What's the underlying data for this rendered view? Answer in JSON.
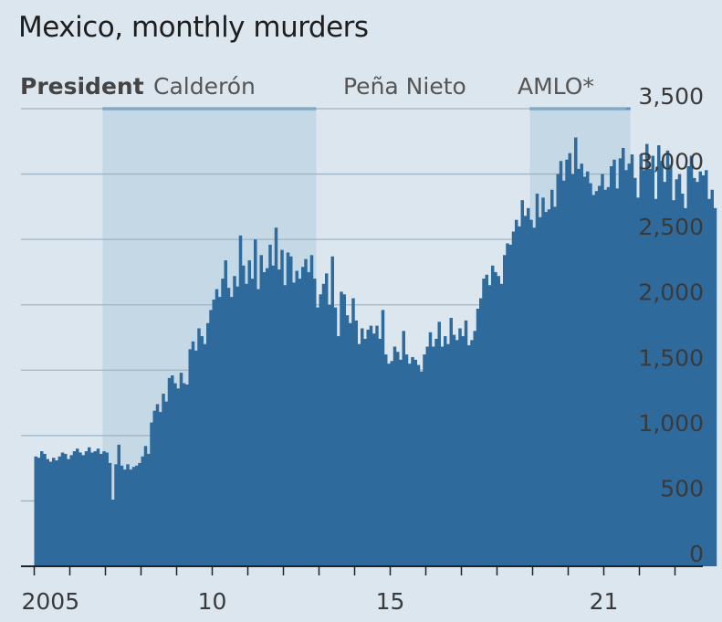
{
  "chart_data": {
    "type": "bar",
    "title": "Mexico, monthly murders",
    "xlabel": "",
    "ylabel": "",
    "ylim": [
      0,
      3500
    ],
    "yticks": [
      0,
      500,
      1000,
      1500,
      2000,
      2500,
      3000,
      3500
    ],
    "ytick_labels": [
      "0",
      "500",
      "1,000",
      "1,500",
      "2,000",
      "2,500",
      "3,000",
      "3,500"
    ],
    "y_axis_side": "right",
    "xticks": [
      2005,
      2010,
      2015,
      2021
    ],
    "xtick_labels": [
      "2005",
      "10",
      "15",
      "21"
    ],
    "x_range": [
      2005.0,
      2023.3
    ],
    "grid": true,
    "presidents_heading": "President",
    "presidents": [
      {
        "name": "Calderón",
        "start": 2006.92,
        "end": 2012.92,
        "shaded": true
      },
      {
        "name": "Peña Nieto",
        "start": 2012.92,
        "end": 2018.92,
        "shaded": false
      },
      {
        "name": "AMLO*",
        "start": 2018.92,
        "end": 2021.75,
        "shaded": true
      }
    ],
    "series": [
      {
        "start_year": 2005,
        "start_month": 1,
        "color": "#2f6a9c",
        "values": [
          840,
          830,
          880,
          860,
          820,
          800,
          830,
          810,
          840,
          870,
          860,
          820,
          850,
          880,
          900,
          870,
          850,
          880,
          910,
          870,
          880,
          900,
          860,
          880,
          870,
          790,
          510,
          780,
          930,
          770,
          740,
          780,
          740,
          760,
          770,
          790,
          840,
          920,
          860,
          1100,
          1190,
          1240,
          1180,
          1320,
          1260,
          1440,
          1460,
          1400,
          1360,
          1480,
          1400,
          1390,
          1660,
          1720,
          1650,
          1820,
          1760,
          1700,
          1860,
          1960,
          2040,
          2120,
          2060,
          2200,
          2340,
          2130,
          2060,
          2220,
          2140,
          2530,
          2300,
          2160,
          2340,
          2200,
          2500,
          2120,
          2380,
          2250,
          2280,
          2460,
          2300,
          2590,
          2270,
          2420,
          2150,
          2400,
          2370,
          2170,
          2260,
          2200,
          2290,
          2350,
          2250,
          2380,
          2200,
          1980,
          2080,
          2160,
          2240,
          2000,
          2370,
          1980,
          1760,
          2100,
          2080,
          1920,
          1860,
          2050,
          1880,
          1700,
          1820,
          1740,
          1810,
          1840,
          1780,
          1840,
          1740,
          1960,
          1620,
          1550,
          1570,
          1680,
          1640,
          1580,
          1800,
          1620,
          1550,
          1600,
          1580,
          1540,
          1490,
          1620,
          1680,
          1790,
          1680,
          1740,
          1870,
          1680,
          1760,
          1700,
          1900,
          1770,
          1730,
          1820,
          1760,
          1880,
          1690,
          1730,
          1800,
          1970,
          2050,
          2200,
          2230,
          2150,
          2300,
          2250,
          2220,
          2160,
          2380,
          2470,
          2460,
          2560,
          2650,
          2600,
          2800,
          2680,
          2740,
          2650,
          2590,
          2850,
          2670,
          2820,
          2710,
          2730,
          2880,
          2750,
          3000,
          3100,
          2950,
          3110,
          3160,
          3000,
          3280,
          3040,
          3080,
          2980,
          3020,
          2930,
          2840,
          2870,
          2910,
          3000,
          2880,
          2900,
          3060,
          3110,
          2890,
          3120,
          3200,
          3030,
          3080,
          3150,
          2970,
          2820,
          3150,
          3030,
          3230,
          3040,
          3140,
          2810,
          3220,
          3100,
          2940,
          3180,
          3070,
          2800,
          2960,
          3000,
          2850,
          2740,
          3060,
          3140,
          2970,
          2940,
          3020,
          2990,
          3030,
          2810,
          2880,
          2740
        ]
      }
    ]
  }
}
